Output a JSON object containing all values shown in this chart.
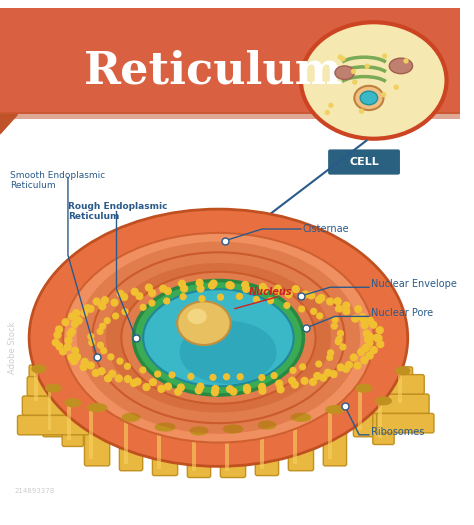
{
  "title": "Reticulum",
  "title_color": "#ffffff",
  "header_color": "#d96040",
  "header_dark_color": "#c0522a",
  "bg_color": "#ffffff",
  "label_color": "#2a5a8a",
  "nucleus_label_color": "#cc2222",
  "cell_box_color": "#2a6080",
  "labels": {
    "smooth_er": "Smooth Endoplasmic\nReticulum",
    "rough_er": "Rough Endoplasmic\nReticulum",
    "cisternae": "Cisternae",
    "nucleus": "Nucleus",
    "nuclear_envelope": "Nuclear Envelope",
    "nuclear_pore": "Nuclear Pore",
    "ribosomes": "Ribosomes",
    "cell": "CELL"
  },
  "er_color": "#e87040",
  "er_dark": "#c05020",
  "er_light": "#f09060",
  "er_ridge": "#d06030",
  "nucleus_outer": "#3aaa55",
  "nucleus_inner": "#3ab8c8",
  "nucleolus": "#e8c060",
  "ribosome_color": "#f0c030",
  "cell_bg_color": "#f5e8b0",
  "cell_membrane_color": "#cc4422",
  "cell_nucleus_color": "#3ab8c8",
  "connector_color": "#2a5a8a"
}
